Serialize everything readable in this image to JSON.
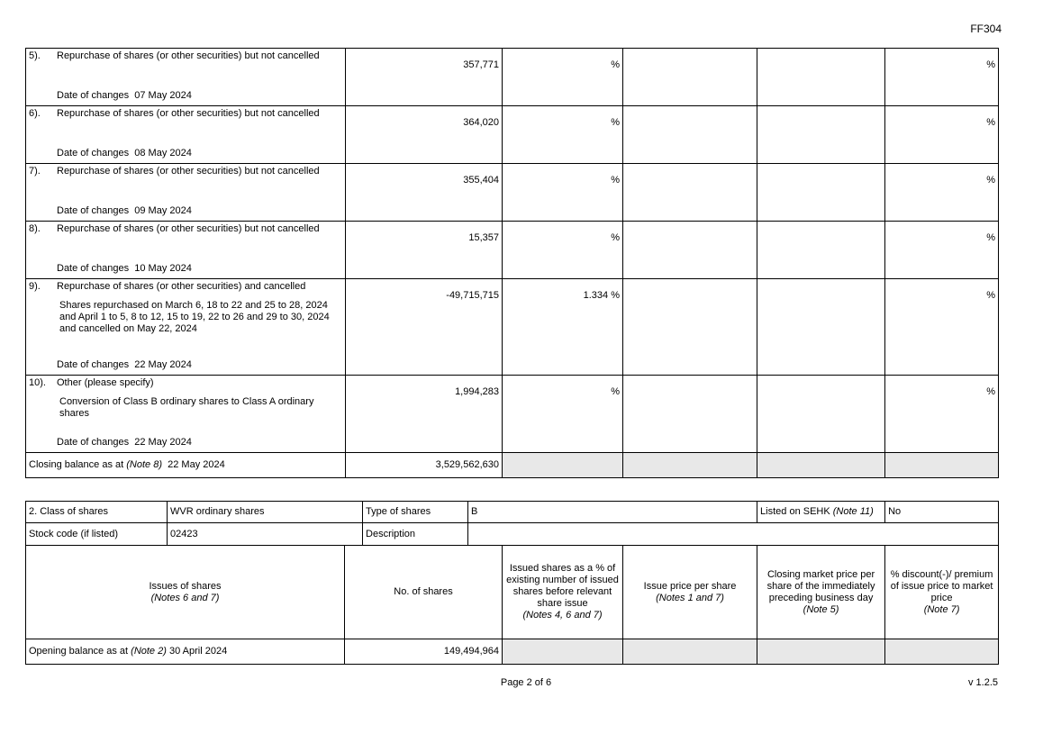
{
  "form_code": "FF304",
  "movements": [
    {
      "no": "5).",
      "title": "Repurchase of shares (or other securities) but not cancelled",
      "detail": "",
      "date_label": "Date of changes",
      "date": "07 May 2024",
      "shares": "357,771",
      "pct": "%",
      "premium_pct": "%"
    },
    {
      "no": "6).",
      "title": "Repurchase of shares (or other securities) but not cancelled",
      "detail": "",
      "date_label": "Date of changes",
      "date": "08 May 2024",
      "shares": "364,020",
      "pct": "%",
      "premium_pct": "%"
    },
    {
      "no": "7).",
      "title": "Repurchase of shares (or other securities) but not cancelled",
      "detail": "",
      "date_label": "Date of changes",
      "date": "09 May 2024",
      "shares": "355,404",
      "pct": "%",
      "premium_pct": "%"
    },
    {
      "no": "8).",
      "title": "Repurchase of shares (or other securities) but not cancelled",
      "detail": "",
      "date_label": "Date of changes",
      "date": "10 May 2024",
      "shares": "15,357",
      "pct": "%",
      "premium_pct": "%"
    },
    {
      "no": "9).",
      "title": "Repurchase of shares (or other securities) and cancelled",
      "detail": "Shares repurchased on March 6, 18 to 22 and 25 to 28, 2024 and April 1 to 5, 8 to 12, 15 to 19, 22 to 26 and 29 to 30, 2024 and cancelled on May 22, 2024",
      "date_label": "Date of changes",
      "date": "22 May 2024",
      "shares": "-49,715,715",
      "pct": "1.334 %",
      "premium_pct": "%"
    },
    {
      "no": "10).",
      "title": "Other (please specify)",
      "detail": "Conversion of Class B ordinary shares to Class A ordinary shares",
      "date_label": "Date of changes",
      "date": "22 May 2024",
      "shares": "1,994,283",
      "pct": "%",
      "premium_pct": "%"
    }
  ],
  "closing": {
    "label": "Closing balance as at",
    "note": "(Note 8)",
    "date": "22 May 2024",
    "shares": "3,529,562,630"
  },
  "class2": {
    "class_label": "2. Class of shares",
    "class_value": "WVR ordinary shares",
    "type_label": "Type of shares",
    "type_value": "B",
    "listed_label": "Listed on SEHK",
    "listed_note": "(Note 11)",
    "listed_value": "No",
    "stock_code_label": "Stock code (if listed)",
    "stock_code_value": "02423",
    "description_label": "Description",
    "description_value": ""
  },
  "headers": {
    "issues": "Issues of shares",
    "issues_note": "(Notes 6 and 7)",
    "no_shares": "No. of shares",
    "issued_pct": "Issued shares as a % of existing number of issued shares before relevant share issue",
    "issued_pct_note": "(Notes 4, 6 and 7)",
    "issue_price": "Issue price per share",
    "issue_price_note": "(Notes 1 and 7)",
    "closing_price": "Closing market price per share of the immediately preceding business day",
    "closing_price_note": "(Note 5)",
    "discount": "% discount(-)/ premium of issue price to market price",
    "discount_note": "(Note 7)"
  },
  "opening": {
    "label": "Opening balance as at",
    "note": "(Note 2)",
    "date": "30 April 2024",
    "shares": "149,494,964"
  },
  "footer": {
    "page": "Page 2 of 6",
    "version": "v 1.2.5"
  }
}
